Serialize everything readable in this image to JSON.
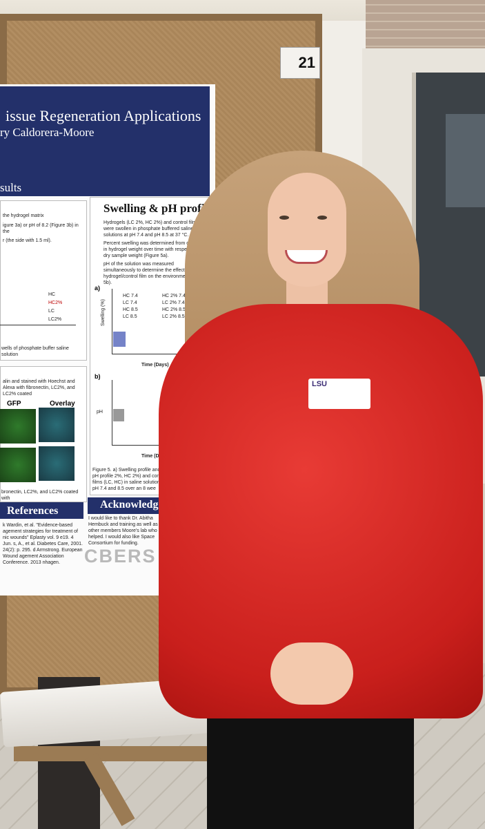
{
  "poster": {
    "board_number": "21",
    "title": "issue Regeneration Applications",
    "author": "ry Caldorera-Moore",
    "results_heading": "sults",
    "swelling_heading": "Swelling & pH profiles",
    "left_text_1": "the hydrogel matrix",
    "left_text_2": "igure 3a) or pH of 8.2 (Figure 3b) in the",
    "left_text_3": "r (the side with 1.5 ml).",
    "legend_hc": "HC",
    "legend_hc2": "HC2%",
    "legend_lc": "LC",
    "legend_lc2": "LC2%",
    "wells_caption": "wells of phosphate buffer saline solution",
    "stain_caption": "alin and stained with Hoechst and Alexa with fibronectin, LC2%, and LC2% coated",
    "gfp_label": "GFP",
    "overlay_label": "Overlay",
    "fibronectin_caption": "bronectin, LC2%, and LC2% coated with",
    "bullets": [
      "Hydrogels (LC 2%, HC 2%) and control films were swollen in phosphate buffered saline solutions at pH 7.4 and pH 8.5 at 37 °C.",
      "Percent swelling was determined from changes in hydrogel weight over time with respect to the dry sample weight (Figure 5a).",
      "pH of the solution was measured simultaneously to determine the effect of the hydrogel/control film on the environment (Figure 5b)."
    ],
    "graph_a_label": "a)",
    "graph_b_label": "b)",
    "swelling_axis": "Swelling (%)",
    "ph_axis": "pH",
    "time_axis": "Time (Days)",
    "graph_legend": [
      "HC 7.4",
      "HC 2% 7.4",
      "LC 7.4",
      "LC 2% 7.4",
      "HC 8.5",
      "HC 2% 8.5",
      "LC 8.5",
      "LC 2% 8.5"
    ],
    "figure_caption": "Figure 5. a) Swelling profile and b) pH profile 2%, HC 2%) and control films (LC, HC) in saline solution at pH 7.4 and 8.5 over an 8 wee",
    "references_heading": "References",
    "references_text": "k Wardin, et al. \"Evidence-based agement strategies for treatment of nic wounds\" Eplasty vol. 9 e19. 4 Jun. s, A., et al. Diabetes Care, 2001. 24(2): p. 295. d Armstrong. European Wound agement Association Conference. 2013 nhagen.",
    "ack_heading": "Acknowledge",
    "ack_text": "I would like to thank Dr. Abitha Hembuck and training as well as all other members Moore's lab who helped. I would also like Space Consortium for funding.",
    "logo_text": "CBERS"
  },
  "badge": {
    "text": "LSU"
  },
  "colors": {
    "sweater": "#d62a25",
    "poster_blue": "#23306a",
    "board": "#b08a5d"
  }
}
